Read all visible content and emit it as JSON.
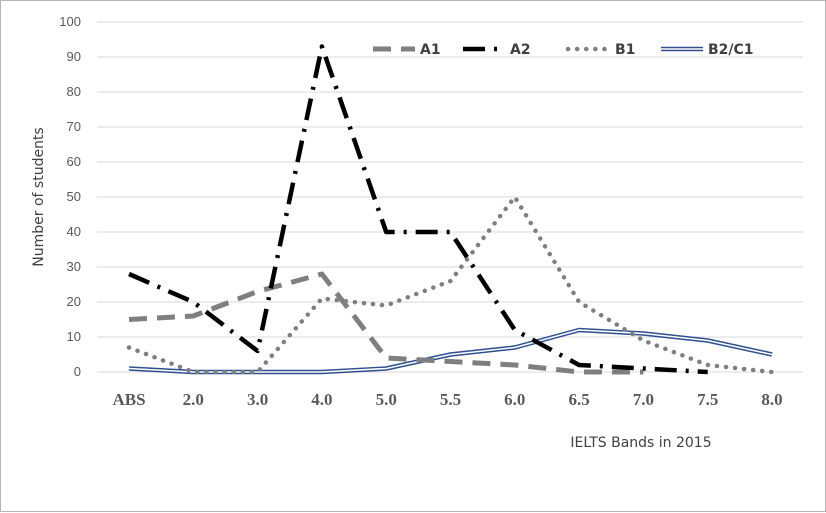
{
  "chart_data": {
    "type": "line",
    "xlabel": "IELTS Bands in 2015",
    "ylabel": "Number of students",
    "categories": [
      "ABS",
      "2.0",
      "3.0",
      "4.0",
      "5.0",
      "5.5",
      "6.0",
      "6.5",
      "7.0",
      "7.5",
      "8.0"
    ],
    "ylim": [
      0,
      100
    ],
    "yticks": [
      0,
      10,
      20,
      30,
      40,
      50,
      60,
      70,
      80,
      90,
      100
    ],
    "grid": true,
    "legend_position": "top-right",
    "series": [
      {
        "name": "A1",
        "values": [
          15,
          16,
          23,
          28,
          4,
          3,
          2,
          0,
          0,
          null,
          null
        ],
        "color": "#7f7f7f",
        "style": "long-dash"
      },
      {
        "name": "A2",
        "values": [
          28,
          20,
          6,
          93,
          40,
          40,
          12,
          2,
          1,
          0,
          null
        ],
        "color": "#000000",
        "style": "long-dash-dot"
      },
      {
        "name": "B1",
        "values": [
          7,
          0,
          0,
          21,
          19,
          26,
          50,
          20,
          9,
          2,
          0
        ],
        "color": "#7f7f7f",
        "style": "dotted"
      },
      {
        "name": "B2/C1",
        "values": [
          1,
          0,
          0,
          0,
          1,
          5,
          7,
          12,
          11,
          9,
          5
        ],
        "color": "#2f4f8f",
        "style": "double"
      }
    ]
  }
}
